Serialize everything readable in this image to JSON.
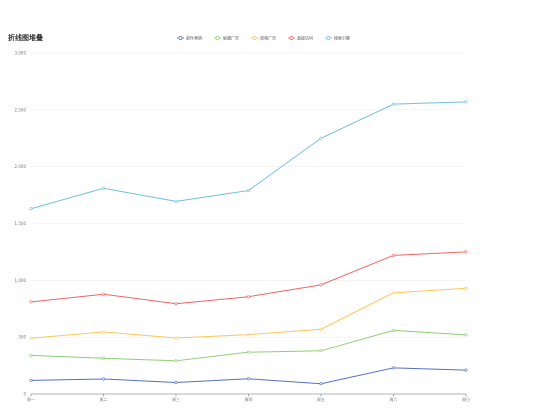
{
  "chart_data": {
    "type": "line",
    "title": "折线图堆叠",
    "categories": [
      "周一",
      "周二",
      "周三",
      "周四",
      "周五",
      "周六",
      "周日"
    ],
    "ylim": [
      0,
      3000
    ],
    "yticks": [
      "0",
      "500",
      "1,000",
      "1,500",
      "2,000",
      "2,500",
      "3,000"
    ],
    "ytick_values": [
      0,
      500,
      1000,
      1500,
      2000,
      2500,
      3000
    ],
    "grid": true,
    "legend_position": "top",
    "stacked": true,
    "series": [
      {
        "name": "邮件营销",
        "color": "#5470c6",
        "values": [
          120,
          132,
          101,
          134,
          90,
          230,
          210
        ]
      },
      {
        "name": "联盟广告",
        "color": "#91cc75",
        "values": [
          220,
          182,
          191,
          234,
          290,
          330,
          310
        ]
      },
      {
        "name": "视频广告",
        "color": "#fac858",
        "values": [
          150,
          232,
          201,
          154,
          190,
          330,
          410
        ]
      },
      {
        "name": "直接访问",
        "color": "#ee6666",
        "values": [
          320,
          332,
          301,
          334,
          390,
          330,
          320
        ]
      },
      {
        "name": "搜索引擎",
        "color": "#73c0de",
        "values": [
          820,
          932,
          901,
          934,
          1290,
          1330,
          1320
        ]
      }
    ]
  }
}
